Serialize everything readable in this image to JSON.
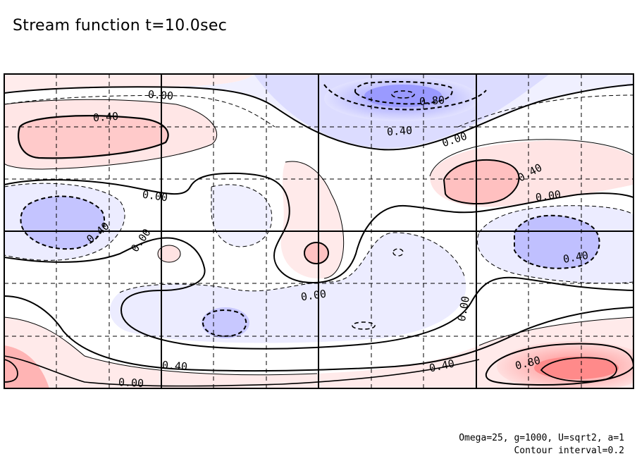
{
  "title": "Stream function t=10.0sec",
  "footer": {
    "params": "Omega=25, g=1000, U=sqrt2, a=1",
    "contour_interval": "Contour interval=0.2"
  },
  "chart_data": {
    "type": "heatmap",
    "title": "Stream function t=10.0sec",
    "description_field": "Stream function",
    "time": "t=10.0sec",
    "contour_interval": 0.2,
    "grid": true,
    "palette": {
      "positive": "#ff5a5a",
      "negative": "#5a5aff",
      "zero": "#ffffff"
    },
    "extrema": [
      {
        "sign": "positive",
        "value": 0.6,
        "region": "left upper"
      },
      {
        "sign": "negative",
        "value": -1.0,
        "region": "top center"
      },
      {
        "sign": "positive",
        "value": 0.6,
        "region": "right upper"
      },
      {
        "sign": "negative",
        "value": -0.6,
        "region": "left middle"
      },
      {
        "sign": "negative",
        "value": -0.6,
        "region": "right middle"
      },
      {
        "sign": "positive",
        "value": 0.4,
        "region": "center"
      },
      {
        "sign": "negative",
        "value": -0.4,
        "region": "lower center"
      },
      {
        "sign": "positive",
        "value": 1.0,
        "region": "bottom right"
      },
      {
        "sign": "positive",
        "value": 0.8,
        "region": "bottom left"
      }
    ],
    "contour_labels": [
      {
        "text": "0.00"
      },
      {
        "text": "0.40"
      },
      {
        "text": "0.80"
      },
      {
        "text": "0.40"
      },
      {
        "text": "0.00"
      },
      {
        "text": "0.40"
      },
      {
        "text": "0.00"
      },
      {
        "text": "0.00"
      },
      {
        "text": "0.40"
      },
      {
        "text": "0.00"
      },
      {
        "text": "0.40"
      },
      {
        "text": "0.00"
      },
      {
        "text": "0.00"
      },
      {
        "text": "0.80"
      },
      {
        "text": "0.40"
      },
      {
        "text": "0.40"
      },
      {
        "text": "0.00"
      }
    ]
  }
}
